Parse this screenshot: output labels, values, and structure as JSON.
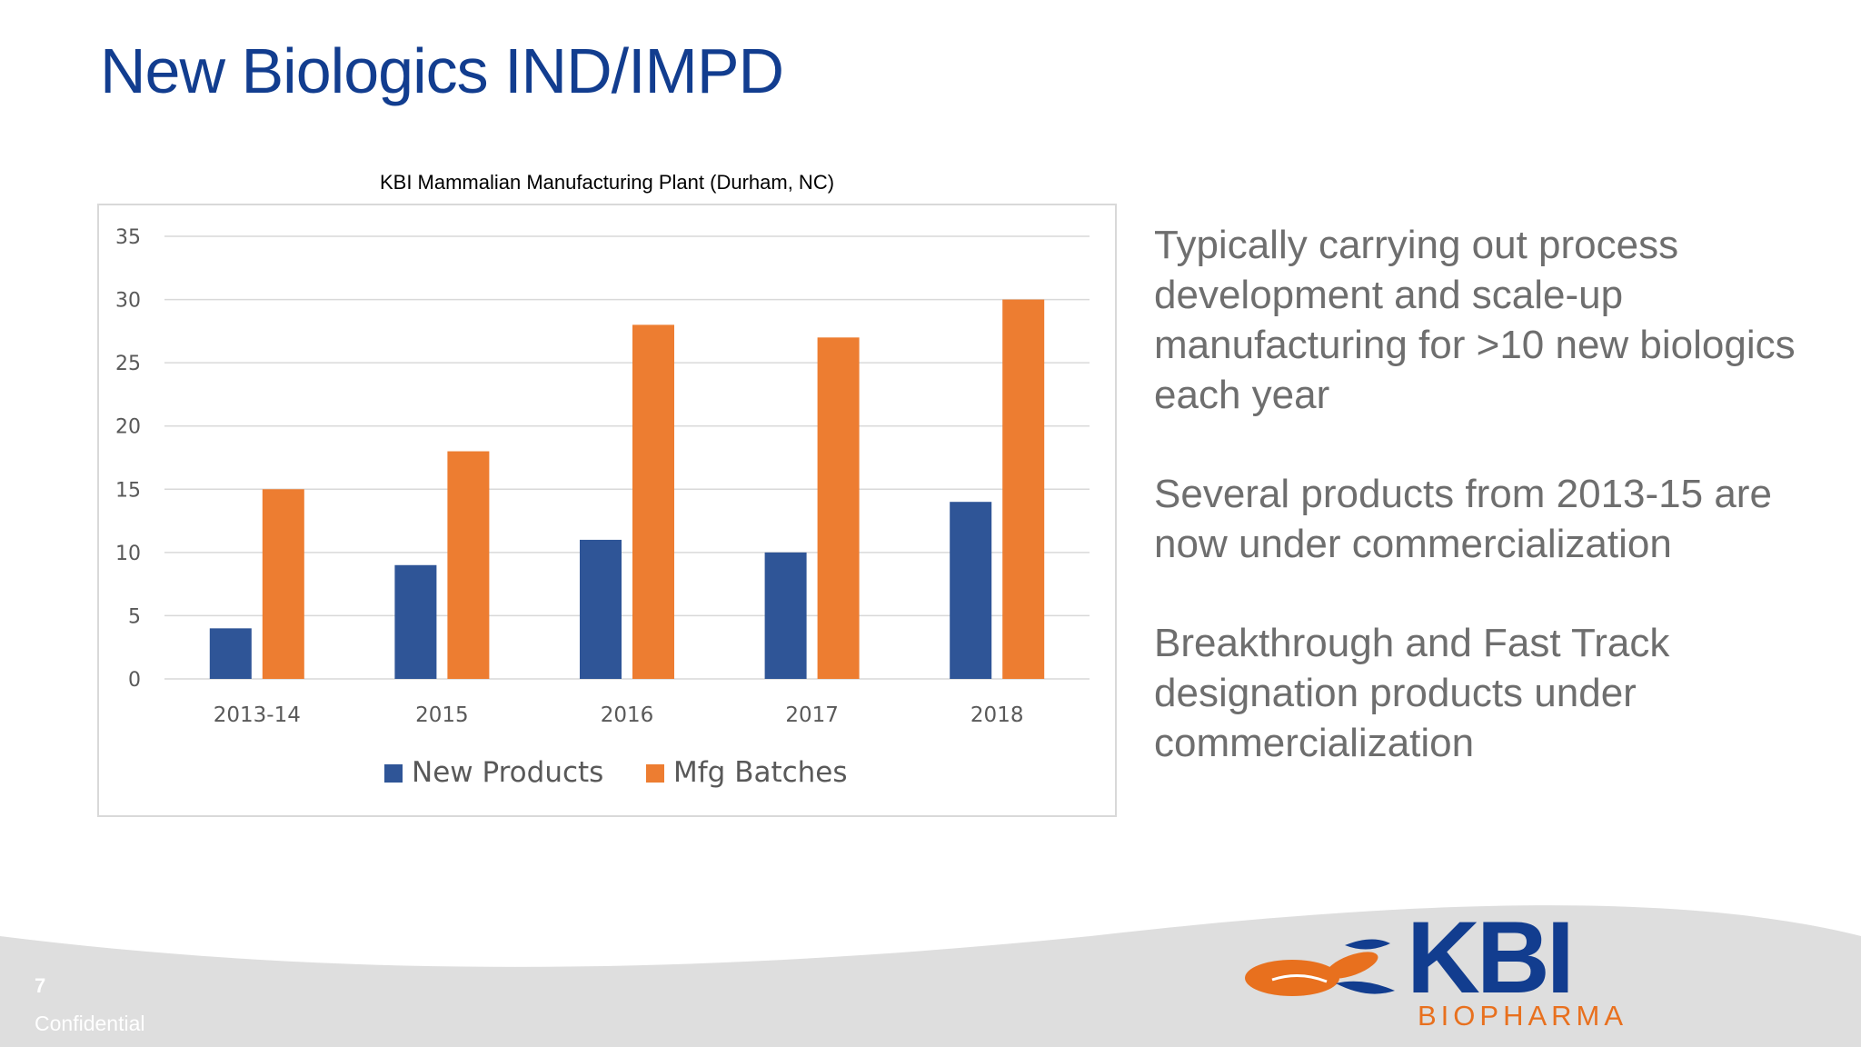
{
  "slide": {
    "title": "New Biologics IND/IMPD",
    "page_number": "7",
    "confidential": "Confidential"
  },
  "bullets": [
    "Typically carrying out process development and scale-up manufacturing for >10 new biologics each year",
    "Several products from 2013-15 are now under commercialization",
    "Breakthrough and Fast Track designation products under commercialization"
  ],
  "logo": {
    "word": "KBI",
    "subtitle": "BIOPHARMA"
  },
  "colors": {
    "new_products": "#2f5597",
    "mfg_batches": "#ed7d31",
    "title": "#123d8f"
  },
  "chart_data": {
    "type": "bar",
    "title": "KBI Mammalian Manufacturing Plant (Durham, NC)",
    "categories": [
      "2013-14",
      "2015",
      "2016",
      "2017",
      "2018"
    ],
    "series": [
      {
        "name": "New Products",
        "values": [
          4,
          9,
          11,
          10,
          14
        ],
        "color": "#2f5597"
      },
      {
        "name": "Mfg Batches",
        "values": [
          15,
          18,
          28,
          27,
          30
        ],
        "color": "#ed7d31"
      }
    ],
    "ylim": [
      0,
      35
    ],
    "yticks": [
      0,
      5,
      10,
      15,
      20,
      25,
      30,
      35
    ],
    "grid": true,
    "legend": "bottom"
  }
}
